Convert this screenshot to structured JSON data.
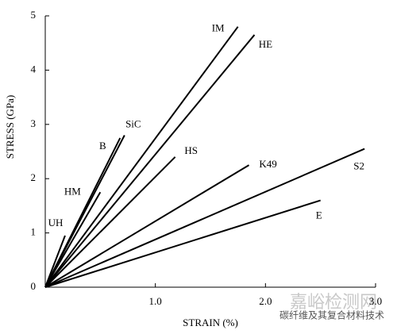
{
  "chart_data": {
    "type": "line",
    "x_label": "STRAIN (%)",
    "y_label": "STRESS (GPa)",
    "xlim": [
      0,
      3
    ],
    "ylim": [
      0,
      5
    ],
    "xticks": [
      {
        "value": 1,
        "label": "1.0"
      },
      {
        "value": 2,
        "label": "2.0"
      },
      {
        "value": 3,
        "label": "3.0"
      }
    ],
    "yticks": [
      0,
      1,
      2,
      3,
      4,
      5
    ],
    "color": "#000000",
    "series": [
      {
        "name": "UH",
        "x": [
          0,
          0.18
        ],
        "values": [
          0,
          0.95
        ]
      },
      {
        "name": "HM",
        "x": [
          0,
          0.5
        ],
        "values": [
          0,
          1.75
        ]
      },
      {
        "name": "B",
        "x": [
          0,
          0.68
        ],
        "values": [
          0,
          2.75
        ]
      },
      {
        "name": "SiC",
        "x": [
          0,
          0.72
        ],
        "values": [
          0,
          2.8
        ]
      },
      {
        "name": "HS",
        "x": [
          0,
          1.18
        ],
        "values": [
          0,
          2.4
        ]
      },
      {
        "name": "IM",
        "x": [
          0,
          1.75
        ],
        "values": [
          0,
          4.8
        ]
      },
      {
        "name": "HE",
        "x": [
          0,
          1.9
        ],
        "values": [
          0,
          4.65
        ]
      },
      {
        "name": "K49",
        "x": [
          0,
          1.85
        ],
        "values": [
          0,
          2.25
        ]
      },
      {
        "name": "S2",
        "x": [
          0,
          2.9
        ],
        "values": [
          0,
          2.55
        ]
      },
      {
        "name": "E",
        "x": [
          0,
          2.5
        ],
        "values": [
          0,
          1.6
        ]
      }
    ]
  },
  "watermark": {
    "site": "嘉峪检测网",
    "account": "碳纤维及其复合材料技术"
  }
}
